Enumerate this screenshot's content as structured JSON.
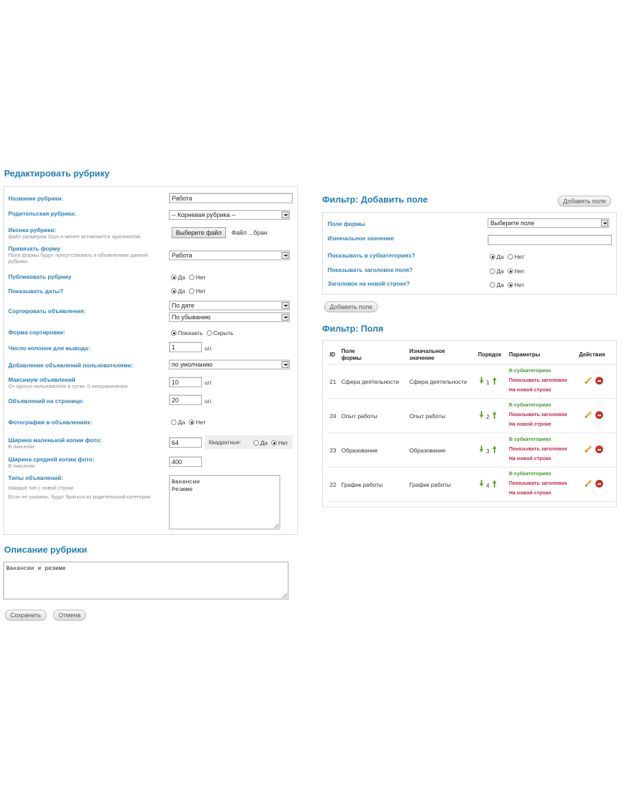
{
  "edit_section": {
    "title": "Редактировать рубрику",
    "fields": {
      "name": {
        "label": "Название рубрики:",
        "value": "Работа"
      },
      "parent": {
        "label": "Родительская рубрика:",
        "value": "-- Корневая рубрика --"
      },
      "icon": {
        "label": "Иконка рубрики:",
        "sub": "файл размером 32px и менее вставляется оригиналом",
        "button": "Выберите файл",
        "file_text": "Файл ...бран"
      },
      "form": {
        "label": "Привязать форму",
        "sub": "Поля формы будут присутствовать в объявлениях данной рубрики",
        "value": "Работа"
      },
      "publish": {
        "label": "Публиковать рубрику",
        "yes": "Да",
        "no": "Нет"
      },
      "show_dates": {
        "label": "Показывать даты?",
        "yes": "Да",
        "no": "Нет"
      },
      "sort": {
        "label": "Сортировать объявления:",
        "value1": "По дате",
        "value2": "По убыванию"
      },
      "sort_form": {
        "label": "Форма сортировки:",
        "show": "Показать",
        "hide": "Скрыть"
      },
      "columns": {
        "label": "Число колонок для вывода:",
        "value": "1",
        "unit": "шт."
      },
      "user_add": {
        "label": "Добавление объявлений пользователями:",
        "value": "по умолчанию"
      },
      "max_ads": {
        "label": "Максимум объявлений",
        "sub": "От одного пользователя в сутки, 0 неограниченно",
        "value": "10",
        "unit": "шт."
      },
      "per_page": {
        "label": "Объявлений на странице:",
        "value": "20",
        "unit": "шт."
      },
      "photos": {
        "label": "Фотографии в объявлениях:",
        "yes": "Да",
        "no": "Нет"
      },
      "small_width": {
        "label": "Ширина маленькой копии фото:",
        "sub": "В пикселях",
        "value": "64",
        "square_label": "Квадратные:",
        "yes": "Да",
        "no": "Нет"
      },
      "mid_width": {
        "label": "Ширина средней копии фото:",
        "sub": "В пикселях",
        "value": "400"
      },
      "types": {
        "label": "Типы объявлений:",
        "sub1": "Каждый тип с новой строки",
        "sub2": "Если не указаны, будут браться из родительской категории",
        "line1": "Вакансии",
        "line2": "Резюме"
      }
    }
  },
  "description": {
    "title": "Описание рубрики",
    "text": "Вакансии и резюме"
  },
  "buttons": {
    "save": "Сохранить",
    "cancel": "Отмена"
  },
  "filter_add": {
    "title": "Фильтр: Добавить поле",
    "top_button": "Добавить поле",
    "form_field": {
      "label": "Поле формы",
      "value": "Выберите поле"
    },
    "initial": {
      "label": "Изначальное значение",
      "value": ""
    },
    "show_sub": {
      "label": "Показывать в субкатегориях?",
      "yes": "Да",
      "no": "Нет"
    },
    "show_header": {
      "label": "Показывать заголовок поля?",
      "yes": "Да",
      "no": "Нет"
    },
    "newline": {
      "label": "Заголовок на новой строке?",
      "yes": "Да",
      "no": "Нет"
    },
    "bottom_button": "Добавить поле"
  },
  "filter_fields": {
    "title": "Фильтр: Поля",
    "headers": {
      "id": "ID",
      "field1": "Поле",
      "field2": "формы",
      "init1": "Изначальное",
      "init2": "значение",
      "order": "Порядок",
      "params": "Параметры",
      "actions": "Действия"
    },
    "param_labels": {
      "sub": "В субкатегориях",
      "header": "Показывать заголовок",
      "newline": "На новой строке"
    },
    "rows": [
      {
        "id": "21",
        "name": "Сфера деятельности",
        "initial": "Сфера деятельности",
        "order": "1"
      },
      {
        "id": "24",
        "name": "Опыт работы",
        "initial": "Опыт работы",
        "order": "2"
      },
      {
        "id": "23",
        "name": "Образование",
        "initial": "Образование",
        "order": "3"
      },
      {
        "id": "22",
        "name": "График работы",
        "initial": "График работы",
        "order": "4"
      }
    ]
  }
}
